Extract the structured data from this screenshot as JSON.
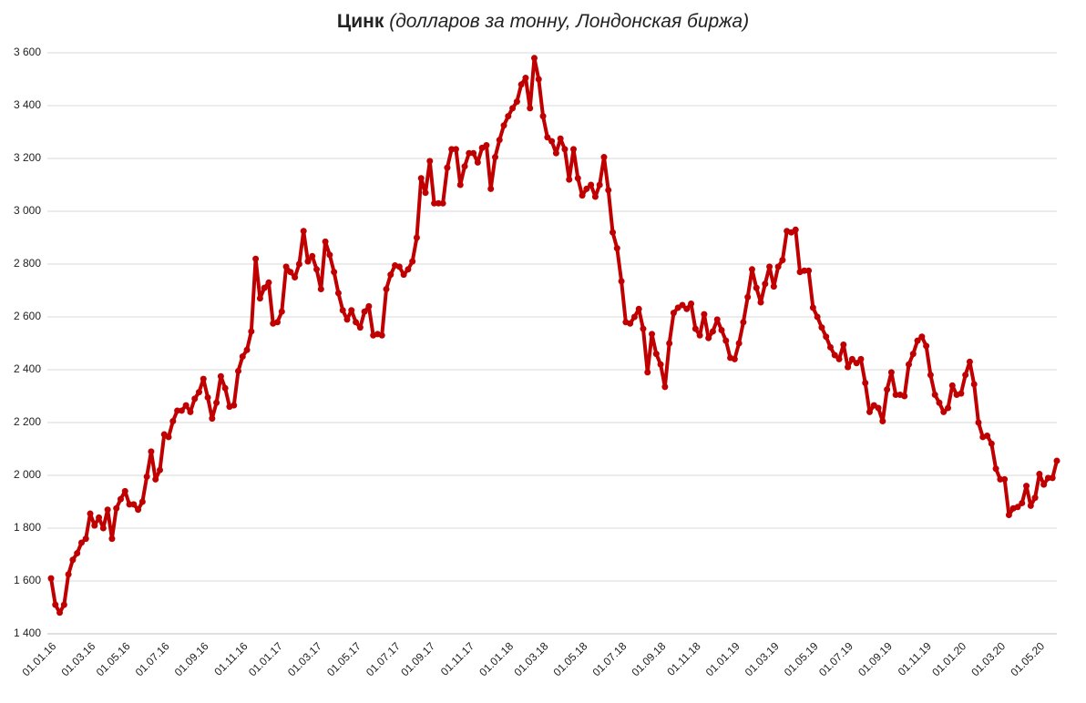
{
  "chart_data": {
    "type": "line",
    "title": "Цинк",
    "subtitle": "(долларов за тонну, Лондонская биржа)",
    "color": "#c00000",
    "grid": true,
    "ylim": [
      1400,
      3600
    ],
    "yticks": [
      {
        "value": 1400,
        "label": "1 400"
      },
      {
        "value": 1600,
        "label": "1 600"
      },
      {
        "value": 1800,
        "label": "1 800"
      },
      {
        "value": 2000,
        "label": "2 000"
      },
      {
        "value": 2200,
        "label": "2 200"
      },
      {
        "value": 2400,
        "label": "2 400"
      },
      {
        "value": 2600,
        "label": "2 600"
      },
      {
        "value": 2800,
        "label": "2 800"
      },
      {
        "value": 3000,
        "label": "3 000"
      },
      {
        "value": 3200,
        "label": "3 200"
      },
      {
        "value": 3400,
        "label": "3 400"
      },
      {
        "value": 3600,
        "label": "3 600"
      }
    ],
    "categories": [
      "01.01.16",
      null,
      null,
      null,
      null,
      null,
      null,
      null,
      null,
      "01.03.16",
      null,
      null,
      null,
      null,
      null,
      null,
      null,
      "01.05.16",
      null,
      null,
      null,
      null,
      null,
      null,
      null,
      null,
      "01.07.16",
      null,
      null,
      null,
      null,
      null,
      null,
      null,
      null,
      "01.09.16",
      null,
      null,
      null,
      null,
      null,
      null,
      null,
      null,
      "01.11.16",
      null,
      null,
      null,
      null,
      null,
      null,
      null,
      "01.01.17",
      null,
      null,
      null,
      null,
      null,
      null,
      null,
      null,
      "01.03.17",
      null,
      null,
      null,
      null,
      null,
      null,
      null,
      null,
      "01.05.17",
      null,
      null,
      null,
      null,
      null,
      null,
      null,
      null,
      "01.07.17",
      null,
      null,
      null,
      null,
      null,
      null,
      null,
      "01.09.17",
      null,
      null,
      null,
      null,
      null,
      null,
      null,
      null,
      "01.11.17",
      null,
      null,
      null,
      null,
      null,
      null,
      null,
      null,
      "01.01.18",
      null,
      null,
      null,
      null,
      null,
      null,
      null,
      "01.03.18",
      null,
      null,
      null,
      null,
      null,
      null,
      null,
      null,
      "01.05.18",
      null,
      null,
      null,
      null,
      null,
      null,
      null,
      null,
      "01.07.18",
      null,
      null,
      null,
      null,
      null,
      null,
      null,
      null,
      "01.09.18",
      null,
      null,
      null,
      null,
      null,
      null,
      null,
      "01.11.18",
      null,
      null,
      null,
      null,
      null,
      null,
      null,
      null,
      "01.01.19",
      null,
      null,
      null,
      null,
      null,
      null,
      null,
      null,
      "01.03.19",
      null,
      null,
      null,
      null,
      null,
      null,
      null,
      null,
      "01.05.19",
      null,
      null,
      null,
      null,
      null,
      null,
      null,
      "01.07.19",
      null,
      null,
      null,
      null,
      null,
      null,
      null,
      null,
      "01.09.19",
      null,
      null,
      null,
      null,
      null,
      null,
      null,
      null,
      "01.11.19",
      null,
      null,
      null,
      null,
      null,
      null,
      null,
      "01.01.20",
      null,
      null,
      null,
      null,
      null,
      null,
      null,
      null,
      "01.03.20",
      null,
      null,
      null,
      null,
      null,
      null,
      null,
      null,
      "01.05.20",
      null,
      null,
      null,
      null
    ],
    "values": [
      1610,
      1510,
      1480,
      1510,
      1625,
      1680,
      1705,
      1745,
      1760,
      1855,
      1810,
      1840,
      1800,
      1870,
      1760,
      1875,
      1910,
      1940,
      1890,
      1890,
      1870,
      1900,
      1995,
      2090,
      1985,
      2020,
      2155,
      2145,
      2205,
      2245,
      2245,
      2265,
      2240,
      2290,
      2315,
      2365,
      2295,
      2215,
      2275,
      2375,
      2330,
      2260,
      2265,
      2395,
      2450,
      2475,
      2545,
      2820,
      2670,
      2710,
      2730,
      2575,
      2580,
      2620,
      2790,
      2770,
      2750,
      2800,
      2925,
      2810,
      2830,
      2780,
      2705,
      2885,
      2835,
      2770,
      2690,
      2625,
      2590,
      2625,
      2580,
      2560,
      2620,
      2640,
      2530,
      2535,
      2530,
      2705,
      2760,
      2795,
      2790,
      2760,
      2780,
      2810,
      2900,
      3125,
      3070,
      3190,
      3030,
      3030,
      3030,
      3165,
      3235,
      3235,
      3100,
      3170,
      3220,
      3220,
      3185,
      3240,
      3250,
      3085,
      3205,
      3270,
      3325,
      3360,
      3390,
      3415,
      3480,
      3505,
      3390,
      3580,
      3500,
      3360,
      3280,
      3265,
      3220,
      3275,
      3235,
      3120,
      3235,
      3125,
      3060,
      3085,
      3100,
      3055,
      3100,
      3205,
      3080,
      2920,
      2860,
      2735,
      2580,
      2575,
      2600,
      2630,
      2555,
      2390,
      2535,
      2460,
      2420,
      2335,
      2500,
      2615,
      2635,
      2645,
      2630,
      2650,
      2555,
      2530,
      2610,
      2520,
      2545,
      2590,
      2550,
      2510,
      2445,
      2440,
      2500,
      2580,
      2675,
      2780,
      2710,
      2655,
      2725,
      2790,
      2715,
      2790,
      2815,
      2925,
      2920,
      2930,
      2770,
      2775,
      2775,
      2635,
      2600,
      2560,
      2525,
      2485,
      2455,
      2440,
      2495,
      2410,
      2440,
      2425,
      2440,
      2350,
      2240,
      2265,
      2255,
      2205,
      2325,
      2390,
      2305,
      2305,
      2300,
      2420,
      2460,
      2510,
      2525,
      2490,
      2380,
      2305,
      2275,
      2240,
      2255,
      2340,
      2305,
      2310,
      2380,
      2430,
      2345,
      2200,
      2145,
      2150,
      2120,
      2025,
      1985,
      1985,
      1850,
      1875,
      1880,
      1895,
      1960,
      1885,
      1915,
      2005,
      1965,
      1990,
      1990,
      2055
    ]
  }
}
